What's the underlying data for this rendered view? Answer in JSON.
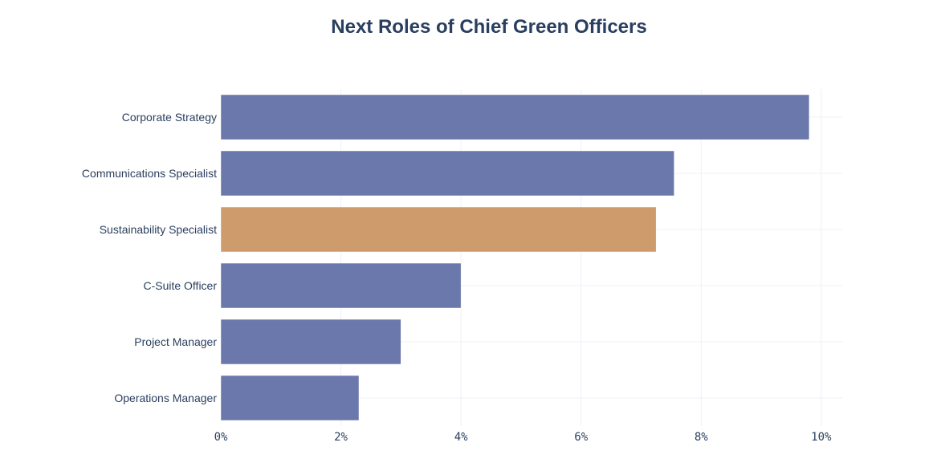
{
  "chart_data": {
    "type": "bar",
    "orientation": "horizontal",
    "title": "Next Roles of Chief Green Officers",
    "xlabel": "",
    "ylabel": "",
    "categories": [
      "Corporate Strategy",
      "Communications Specialist",
      "Sustainability Specialist",
      "C-Suite Officer",
      "Project Manager",
      "Operations Manager"
    ],
    "values": [
      9.8,
      7.55,
      7.25,
      4.0,
      3.0,
      2.3
    ],
    "bar_colors": [
      "#6b78ab",
      "#6b78ab",
      "#cd9b6c",
      "#6b78ab",
      "#6b78ab",
      "#6b78ab"
    ],
    "xlim": [
      0,
      10.35
    ],
    "xticks": [
      0,
      2,
      4,
      6,
      8,
      10
    ],
    "xtick_labels": [
      "0%",
      "2%",
      "4%",
      "6%",
      "8%",
      "10%"
    ],
    "grid": true,
    "legend": "none"
  }
}
